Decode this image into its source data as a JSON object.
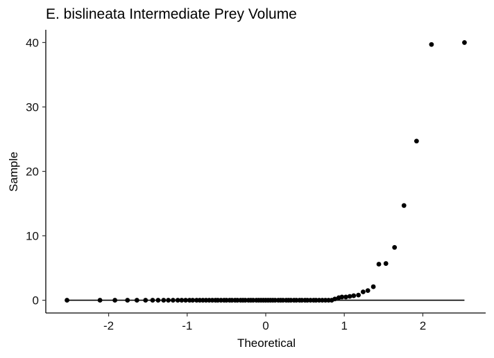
{
  "chart_data": {
    "type": "scatter",
    "title": "E. bislineata Intermediate Prey Volume",
    "xlabel": "Theoretical",
    "ylabel": "Sample",
    "xlim": [
      -2.8,
      2.8
    ],
    "ylim": [
      -1.98,
      41.98
    ],
    "x_ticks": [
      -2,
      -1,
      0,
      1,
      2
    ],
    "x_tick_labels": [
      "-2",
      "-1",
      "0",
      "1",
      "2"
    ],
    "y_ticks": [
      0,
      10,
      20,
      30,
      40
    ],
    "y_tick_labels": [
      "0",
      "10",
      "20",
      "30",
      "40"
    ],
    "grid": false,
    "reference_line": {
      "x": [
        -2.53,
        2.53
      ],
      "y": [
        0,
        0
      ]
    },
    "zero_points_x": [
      -2.53,
      -2.11,
      -1.92,
      -1.76,
      -1.64,
      -1.53,
      -1.44,
      -1.37,
      -1.3,
      -1.24,
      -1.18,
      -1.12,
      -1.07,
      -1.02,
      -0.97,
      -0.93,
      -0.88,
      -0.84,
      -0.8,
      -0.76,
      -0.72,
      -0.68,
      -0.64,
      -0.61,
      -0.57,
      -0.53,
      -0.5,
      -0.46,
      -0.43,
      -0.39,
      -0.36,
      -0.32,
      -0.29,
      -0.26,
      -0.22,
      -0.19,
      -0.16,
      -0.12,
      -0.09,
      -0.06,
      -0.03,
      0.0,
      0.03,
      0.06,
      0.09,
      0.12,
      0.16,
      0.19,
      0.22,
      0.26,
      0.29,
      0.32,
      0.36,
      0.39,
      0.43,
      0.46,
      0.5,
      0.53,
      0.57,
      0.61,
      0.64,
      0.68,
      0.72,
      0.76,
      0.8,
      0.84
    ],
    "nonzero_points": [
      {
        "x": 0.88,
        "y": 0.2
      },
      {
        "x": 0.93,
        "y": 0.4
      },
      {
        "x": 0.97,
        "y": 0.5
      },
      {
        "x": 1.02,
        "y": 0.5
      },
      {
        "x": 1.07,
        "y": 0.6
      },
      {
        "x": 1.12,
        "y": 0.7
      },
      {
        "x": 1.18,
        "y": 0.8
      },
      {
        "x": 1.24,
        "y": 1.3
      },
      {
        "x": 1.3,
        "y": 1.5
      },
      {
        "x": 1.37,
        "y": 2.1
      },
      {
        "x": 1.44,
        "y": 5.6
      },
      {
        "x": 1.53,
        "y": 5.7
      },
      {
        "x": 1.64,
        "y": 8.2
      },
      {
        "x": 1.76,
        "y": 14.7
      },
      {
        "x": 1.92,
        "y": 24.7
      },
      {
        "x": 2.11,
        "y": 39.7
      },
      {
        "x": 2.53,
        "y": 40.0
      }
    ]
  }
}
